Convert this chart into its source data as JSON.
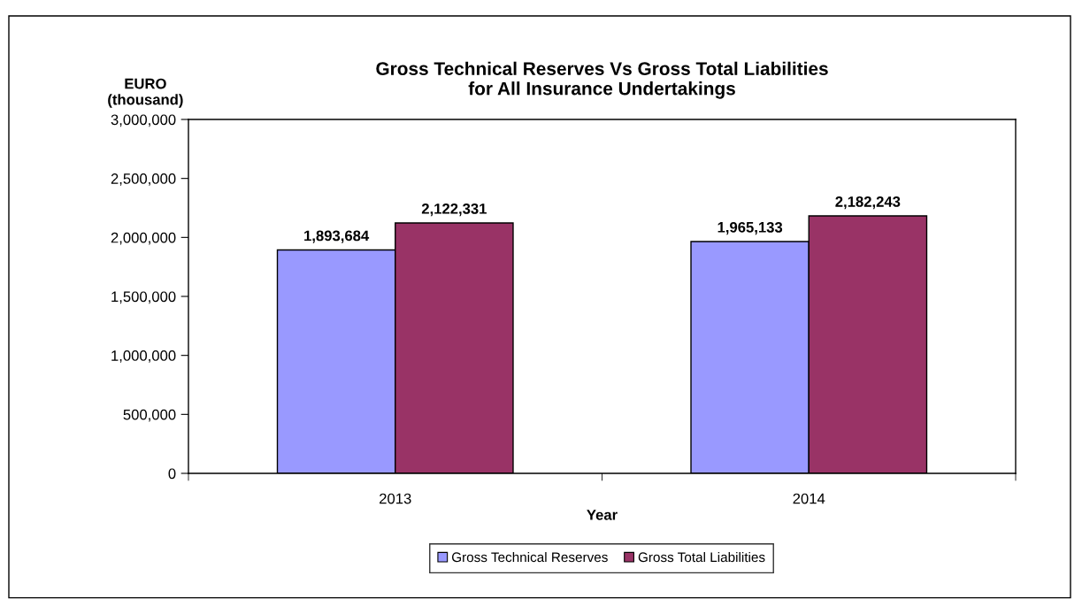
{
  "chart_data": {
    "type": "bar",
    "title": "Gross Technical Reserves Vs Gross Total Liabilities\nfor All Insurance Undertakings",
    "xlabel": "Year",
    "ylabel": "EURO\n(thousand)",
    "categories": [
      "2013",
      "2014"
    ],
    "series": [
      {
        "name": "Gross Technical Reserves",
        "color": "#9999ff",
        "values": [
          1893684,
          1965133
        ],
        "value_labels": [
          "1,893,684",
          "1,965,133"
        ]
      },
      {
        "name": "Gross Total Liabilities",
        "color": "#993366",
        "values": [
          2122331,
          2182243
        ],
        "value_labels": [
          "2,122,331",
          "2,182,243"
        ]
      }
    ],
    "ylim": [
      0,
      3000000
    ],
    "yticks": [
      0,
      {
        "value": 500000,
        "label": "500,000"
      },
      {
        "value": 1000000,
        "label": "1,000,000"
      },
      {
        "value": 1500000,
        "label": "1,500,000"
      },
      {
        "value": 2000000,
        "label": "2,000,000"
      },
      {
        "value": 2500000,
        "label": "2,500,000"
      },
      {
        "value": 3000000,
        "label": "3,000,000"
      }
    ],
    "legend": "bottom",
    "grid": false
  }
}
